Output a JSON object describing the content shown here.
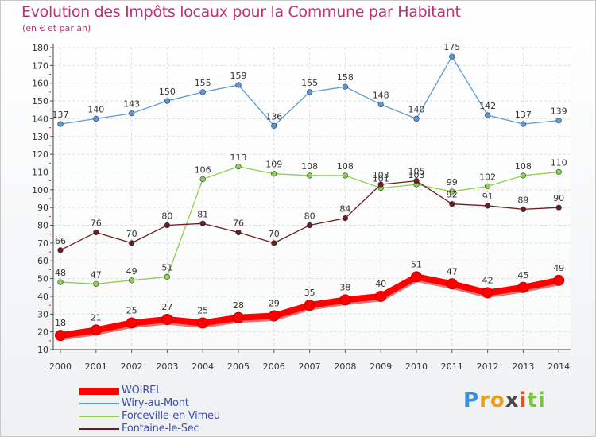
{
  "chart_data": {
    "type": "line",
    "title": "Evolution des Impôts locaux pour la Commune par Habitant",
    "subtitle": "(en € et par an)",
    "categories": [
      "2000",
      "2001",
      "2002",
      "2003",
      "2004",
      "2005",
      "2006",
      "2007",
      "2008",
      "2009",
      "2010",
      "2011",
      "2012",
      "2013",
      "2014"
    ],
    "y_ticks": [
      "10",
      "20",
      "30",
      "40",
      "50",
      "60",
      "70",
      "80",
      "90",
      "100",
      "110",
      "120",
      "130",
      "140",
      "150",
      "160",
      "170",
      "180"
    ],
    "ylim": [
      10,
      180
    ],
    "grid": true,
    "legend_position": "bottom-left",
    "series": [
      {
        "name": "WOIREL",
        "color": "#ff0000",
        "values": [
          18,
          21,
          25,
          27,
          25,
          28,
          29,
          35,
          38,
          40,
          51,
          47,
          42,
          45,
          49
        ],
        "labels": [
          "18",
          "21",
          "25",
          "27",
          "25",
          "28",
          "29",
          "35",
          "38",
          "40",
          "51",
          "47",
          "42",
          "45",
          "49"
        ]
      },
      {
        "name": "Wiry-au-Mont",
        "color": "#5b9bd5",
        "values": [
          137,
          140,
          143,
          150,
          155,
          159,
          136,
          155,
          158,
          148,
          140,
          175,
          142,
          137,
          139
        ],
        "labels": [
          "137",
          "140",
          "143",
          "150",
          "155",
          "159",
          "136",
          "155",
          "158",
          "148",
          "140",
          "175",
          "142",
          "137",
          "139"
        ]
      },
      {
        "name": "Forceville-en-Vimeu",
        "color": "#8ed14a",
        "values": [
          48,
          47,
          49,
          51,
          106,
          113,
          109,
          108,
          108,
          101,
          103,
          99,
          102,
          108,
          110
        ],
        "labels": [
          "48",
          "47",
          "49",
          "51",
          "106",
          "113",
          "109",
          "108",
          "108",
          "101",
          "103",
          "99",
          "102",
          "108",
          "110"
        ]
      },
      {
        "name": "Fontaine-le-Sec",
        "color": "#6b1e1e",
        "values": [
          66,
          76,
          70,
          80,
          81,
          76,
          70,
          80,
          84,
          103,
          105,
          92,
          91,
          89,
          90
        ],
        "labels": [
          "66",
          "76",
          "70",
          "80",
          "81",
          "76",
          "70",
          "80",
          "84",
          "103",
          "105",
          "92",
          "91",
          "89",
          "90"
        ]
      }
    ]
  },
  "logo": {
    "letters": [
      "P",
      "r",
      "o",
      "x",
      "i",
      "t",
      "i"
    ],
    "colors": [
      "#3b8fd6",
      "#e8a020",
      "#e8a020",
      "#4a4a4a",
      "#e85020",
      "#7cc242",
      "#7cc242"
    ]
  }
}
